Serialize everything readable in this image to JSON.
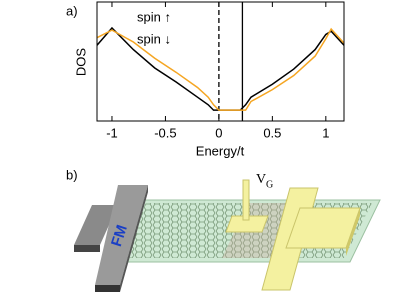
{
  "chart_data": {
    "type": "line",
    "label": "a)",
    "xlabel": "Energy/t",
    "ylabel": "DOS",
    "x": [
      -1.14,
      -1.0,
      -0.8,
      -0.6,
      -0.4,
      -0.2,
      -0.1,
      -0.05,
      0,
      0.2,
      0.25,
      0.3,
      0.5,
      0.7,
      0.9,
      1.0,
      1.05,
      1.17
    ],
    "series": [
      {
        "name": "spin ↑",
        "color": "#000000",
        "values": [
          0.6,
          0.76,
          0.56,
          0.39,
          0.26,
          0.12,
          0.05,
          0,
          0,
          0,
          0.05,
          0.12,
          0.24,
          0.38,
          0.56,
          0.7,
          0.73,
          0.6
        ]
      },
      {
        "name": "spin ↓",
        "color": "#f5a623",
        "values": [
          0.67,
          0.74,
          0.63,
          0.48,
          0.35,
          0.21,
          0.12,
          0.05,
          0,
          0,
          0,
          0.08,
          0.19,
          0.32,
          0.5,
          0.66,
          0.75,
          0.62
        ]
      }
    ],
    "vlines": [
      {
        "x": 0,
        "style": "dashed"
      },
      {
        "x": 0.22,
        "style": "solid"
      }
    ],
    "xlim": [
      -1.14,
      1.17
    ],
    "xticks": [
      -1,
      -0.5,
      0,
      0.5,
      1
    ],
    "ylim": [
      -0.1,
      1
    ]
  },
  "figure": {
    "label_b": "b)",
    "fm_label": "FM",
    "gate_label": "V",
    "gate_subscript": "G"
  }
}
